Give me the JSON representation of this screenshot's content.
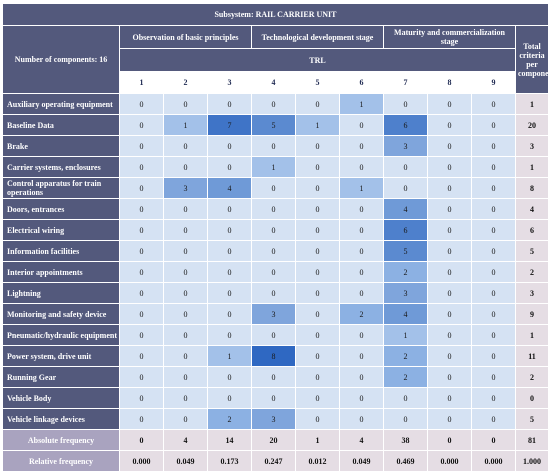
{
  "title": "Subsystem: RAIL CARRIER UNIT",
  "component_count_label": "Number of components: 16",
  "stages": [
    "Observation of basic principles",
    "Technological development stage",
    "Maturity and commercialization stage"
  ],
  "trl_label": "TRL",
  "total_header": "Total criteria per component",
  "levels": [
    "1",
    "2",
    "3",
    "4",
    "5",
    "6",
    "7",
    "8",
    "9"
  ],
  "rows": [
    {
      "label": "Auxiliary operating equipment",
      "values": [
        0,
        0,
        0,
        0,
        0,
        1,
        0,
        0,
        0
      ],
      "total": 1
    },
    {
      "label": "Baseline Data",
      "values": [
        0,
        1,
        7,
        5,
        1,
        0,
        6,
        0,
        0
      ],
      "total": 20
    },
    {
      "label": "Brake",
      "values": [
        0,
        0,
        0,
        0,
        0,
        0,
        3,
        0,
        0
      ],
      "total": 3
    },
    {
      "label": "Carrier systems, enclosures",
      "values": [
        0,
        0,
        0,
        1,
        0,
        0,
        0,
        0,
        0
      ],
      "total": 1
    },
    {
      "label": "Control apparatus for train operations",
      "values": [
        0,
        3,
        4,
        0,
        0,
        1,
        0,
        0,
        0
      ],
      "total": 8
    },
    {
      "label": "Doors, entrances",
      "values": [
        0,
        0,
        0,
        0,
        0,
        0,
        4,
        0,
        0
      ],
      "total": 4
    },
    {
      "label": "Electrical wiring",
      "values": [
        0,
        0,
        0,
        0,
        0,
        0,
        6,
        0,
        0
      ],
      "total": 6
    },
    {
      "label": "Information facilities",
      "values": [
        0,
        0,
        0,
        0,
        0,
        0,
        5,
        0,
        0
      ],
      "total": 5
    },
    {
      "label": "Interior appointments",
      "values": [
        0,
        0,
        0,
        0,
        0,
        0,
        2,
        0,
        0
      ],
      "total": 2
    },
    {
      "label": "Lightning",
      "values": [
        0,
        0,
        0,
        0,
        0,
        0,
        3,
        0,
        0
      ],
      "total": 3
    },
    {
      "label": "Monitoring and safety device",
      "values": [
        0,
        0,
        0,
        3,
        0,
        2,
        4,
        0,
        0
      ],
      "total": 9
    },
    {
      "label": "Pneumatic/hydraulic equipment",
      "values": [
        0,
        0,
        0,
        0,
        0,
        0,
        1,
        0,
        0
      ],
      "total": 1
    },
    {
      "label": "Power system, drive unit",
      "values": [
        0,
        0,
        1,
        8,
        0,
        0,
        2,
        0,
        0
      ],
      "total": 11
    },
    {
      "label": "Running Gear",
      "values": [
        0,
        0,
        0,
        0,
        0,
        0,
        2,
        0,
        0
      ],
      "total": 2
    },
    {
      "label": "Vehicle Body",
      "values": [
        0,
        0,
        0,
        0,
        0,
        0,
        0,
        0,
        0
      ],
      "total": 0
    },
    {
      "label": "Vehicle linkage devices",
      "values": [
        0,
        0,
        2,
        3,
        0,
        0,
        0,
        0,
        0
      ],
      "total": 5
    }
  ],
  "absolute": {
    "label": "Absolute frequency",
    "values": [
      "0",
      "4",
      "14",
      "20",
      "1",
      "4",
      "38",
      "0",
      "0"
    ],
    "total": "81"
  },
  "relative": {
    "label": "Relative frequency",
    "values": [
      "0.000",
      "0.049",
      "0.173",
      "0.247",
      "0.012",
      "0.049",
      "0.469",
      "0.000",
      "0.000"
    ],
    "total": "1.000"
  }
}
